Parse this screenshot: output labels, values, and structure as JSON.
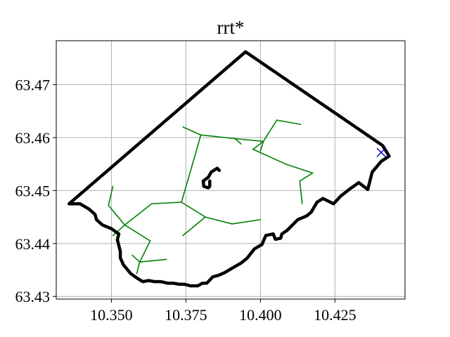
{
  "chart_data": {
    "type": "line",
    "title": "rrt*",
    "xlabel": "",
    "ylabel": "",
    "xlim": [
      10.3315,
      10.4485
    ],
    "ylim": [
      63.4295,
      63.4783
    ],
    "xticks": [
      10.35,
      10.375,
      10.4,
      10.425
    ],
    "xtick_labels": [
      "10.350",
      "10.375",
      "10.400",
      "10.425"
    ],
    "yticks": [
      63.43,
      63.44,
      63.45,
      63.46,
      63.47
    ],
    "ytick_labels": [
      "63.43",
      "63.44",
      "63.45",
      "63.46",
      "63.47"
    ],
    "grid": true,
    "colors": {
      "boundary": "#000000",
      "tree": "#008000",
      "goal": "#0000cc",
      "grid": "#b0b0b0"
    },
    "boundary": [
      [
        10.395,
        63.4762
      ],
      [
        10.441,
        63.4585
      ],
      [
        10.4432,
        63.4565
      ],
      [
        10.4405,
        63.4555
      ],
      [
        10.4375,
        63.4535
      ],
      [
        10.436,
        63.4502
      ],
      [
        10.433,
        63.4515
      ],
      [
        10.43,
        63.4503
      ],
      [
        10.427,
        63.449
      ],
      [
        10.4245,
        63.4475
      ],
      [
        10.421,
        63.4485
      ],
      [
        10.419,
        63.4478
      ],
      [
        10.417,
        63.4459
      ],
      [
        10.4155,
        63.4452
      ],
      [
        10.4125,
        63.4445
      ],
      [
        10.409,
        63.4425
      ],
      [
        10.4072,
        63.4418
      ],
      [
        10.4068,
        63.441
      ],
      [
        10.405,
        63.4408
      ],
      [
        10.4043,
        63.4418
      ],
      [
        10.4018,
        63.4415
      ],
      [
        10.4005,
        63.4398
      ],
      [
        10.398,
        63.439
      ],
      [
        10.3955,
        63.4372
      ],
      [
        10.3935,
        63.4363
      ],
      [
        10.391,
        63.4355
      ],
      [
        10.388,
        63.4345
      ],
      [
        10.386,
        63.434
      ],
      [
        10.384,
        63.4337
      ],
      [
        10.382,
        63.4325
      ],
      [
        10.3805,
        63.4325
      ],
      [
        10.379,
        63.432
      ],
      [
        10.3765,
        63.432
      ],
      [
        10.3745,
        63.4323
      ],
      [
        10.3728,
        63.4323
      ],
      [
        10.3708,
        63.4325
      ],
      [
        10.369,
        63.4325
      ],
      [
        10.3665,
        63.4328
      ],
      [
        10.3645,
        63.4328
      ],
      [
        10.3625,
        63.433
      ],
      [
        10.3605,
        63.4328
      ],
      [
        10.3585,
        63.4335
      ],
      [
        10.3565,
        63.4343
      ],
      [
        10.354,
        63.436
      ],
      [
        10.353,
        63.4373
      ],
      [
        10.353,
        63.4385
      ],
      [
        10.352,
        63.4407
      ],
      [
        10.3525,
        63.4418
      ],
      [
        10.35,
        63.4428
      ],
      [
        10.347,
        63.4435
      ],
      [
        10.345,
        63.4445
      ],
      [
        10.3445,
        63.4455
      ],
      [
        10.3425,
        63.4465
      ],
      [
        10.3395,
        63.4475
      ],
      [
        10.3358,
        63.4475
      ],
      [
        10.395,
        63.4762
      ]
    ],
    "island": [
      [
        10.383,
        63.4518
      ],
      [
        10.383,
        63.4508
      ],
      [
        10.3825,
        63.4505
      ],
      [
        10.381,
        63.4508
      ],
      [
        10.3808,
        63.4518
      ],
      [
        10.3825,
        63.4525
      ],
      [
        10.3835,
        63.4535
      ],
      [
        10.3855,
        63.4542
      ],
      [
        10.3862,
        63.4538
      ]
    ],
    "tree_edges": [
      [
        [
          10.3585,
          63.4343
        ],
        [
          10.3595,
          63.4365
        ]
      ],
      [
        [
          10.3595,
          63.4365
        ],
        [
          10.357,
          63.4378
        ]
      ],
      [
        [
          10.3595,
          63.4365
        ],
        [
          10.3685,
          63.437
        ]
      ],
      [
        [
          10.3595,
          63.4365
        ],
        [
          10.363,
          63.4405
        ]
      ],
      [
        [
          10.363,
          63.4405
        ],
        [
          10.3545,
          63.4435
        ]
      ],
      [
        [
          10.3545,
          63.4435
        ],
        [
          10.3505,
          63.4415
        ]
      ],
      [
        [
          10.3545,
          63.4435
        ],
        [
          10.349,
          63.4472
        ]
      ],
      [
        [
          10.349,
          63.4472
        ],
        [
          10.3505,
          63.4508
        ]
      ],
      [
        [
          10.3545,
          63.4435
        ],
        [
          10.3635,
          63.4475
        ]
      ],
      [
        [
          10.3635,
          63.4475
        ],
        [
          10.3735,
          63.4478
        ]
      ],
      [
        [
          10.3735,
          63.4478
        ],
        [
          10.3815,
          63.445
        ]
      ],
      [
        [
          10.3815,
          63.445
        ],
        [
          10.374,
          63.4415
        ]
      ],
      [
        [
          10.3815,
          63.445
        ],
        [
          10.3905,
          63.4437
        ]
      ],
      [
        [
          10.3905,
          63.4437
        ],
        [
          10.4,
          63.4445
        ]
      ],
      [
        [
          10.3735,
          63.4478
        ],
        [
          10.3785,
          63.4575
        ]
      ],
      [
        [
          10.3785,
          63.4575
        ],
        [
          10.38,
          63.4605
        ]
      ],
      [
        [
          10.38,
          63.4605
        ],
        [
          10.374,
          63.462
        ]
      ],
      [
        [
          10.38,
          63.4605
        ],
        [
          10.3915,
          63.4598
        ]
      ],
      [
        [
          10.3915,
          63.4598
        ],
        [
          10.3935,
          63.4588
        ]
      ],
      [
        [
          10.3915,
          63.4598
        ],
        [
          10.401,
          63.4593
        ]
      ],
      [
        [
          10.401,
          63.4593
        ],
        [
          10.4055,
          63.4633
        ]
      ],
      [
        [
          10.4055,
          63.4633
        ],
        [
          10.4135,
          63.4625
        ]
      ],
      [
        [
          10.401,
          63.4593
        ],
        [
          10.4,
          63.4575
        ]
      ],
      [
        [
          10.401,
          63.4593
        ],
        [
          10.3975,
          63.4578
        ]
      ],
      [
        [
          10.3975,
          63.4578
        ],
        [
          10.4085,
          63.455
        ]
      ],
      [
        [
          10.4085,
          63.455
        ],
        [
          10.4175,
          63.4533
        ]
      ],
      [
        [
          10.4175,
          63.4533
        ],
        [
          10.4132,
          63.4518
        ]
      ],
      [
        [
          10.4132,
          63.4518
        ],
        [
          10.414,
          63.4475
        ]
      ]
    ],
    "goal": [
      10.4405,
      63.4572
    ]
  }
}
